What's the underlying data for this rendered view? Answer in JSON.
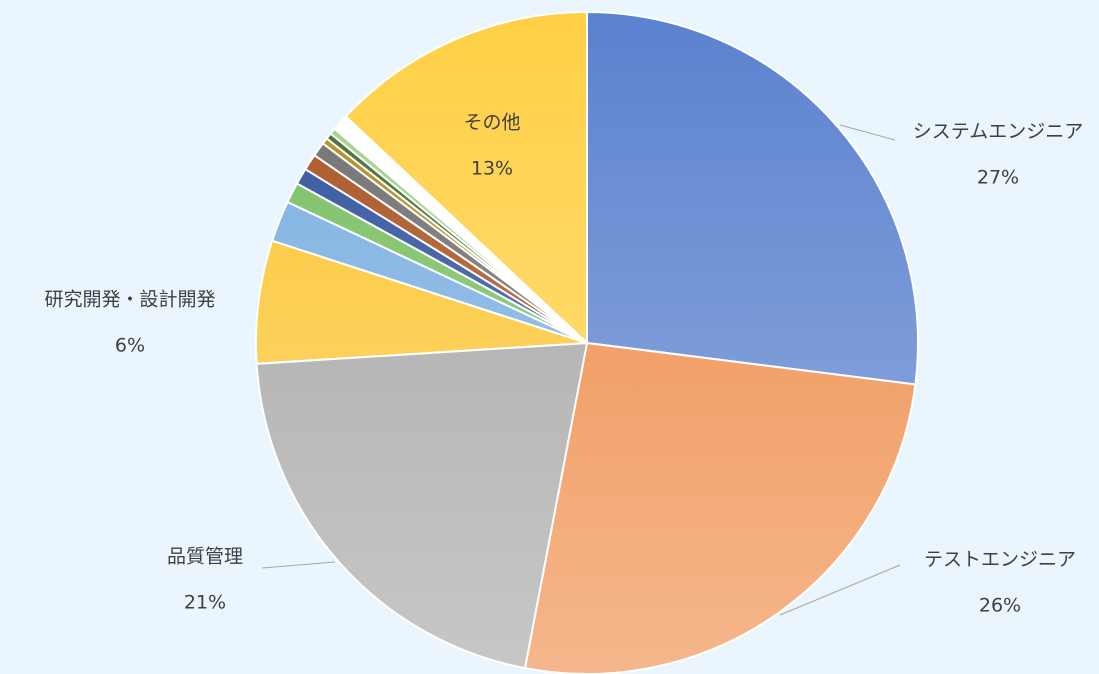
{
  "chart_data": {
    "type": "pie",
    "categories": [
      "システムエンジニア",
      "テストエンジニア",
      "品質管理",
      "研究開発・設計開発",
      null,
      null,
      null,
      null,
      null,
      null,
      null,
      null,
      null,
      "その他"
    ],
    "values": [
      27,
      26,
      21,
      6,
      2,
      1,
      0.8,
      0.8,
      0.7,
      0.3,
      0.3,
      0.3,
      0.8,
      13
    ],
    "value_labels": [
      "27%",
      "26%",
      "21%",
      "6%",
      null,
      null,
      null,
      null,
      null,
      null,
      null,
      null,
      null,
      "13%"
    ],
    "colors": [
      "#5b82cf",
      "#ef8a45",
      "#a5a5a5",
      "#fbc531",
      "#78aee0",
      "#76be5f",
      "#2d4f9c",
      "#a8501d",
      "#6d6d6d",
      "#b08a1c",
      "#416c2c",
      "#a0d08c",
      "#ffffff",
      "#ffd045"
    ]
  }
}
